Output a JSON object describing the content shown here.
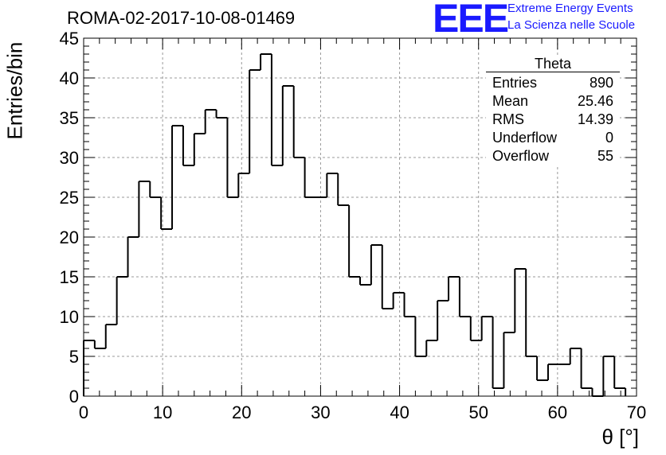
{
  "title": "ROMA-02-2017-10-08-01469",
  "logo": {
    "letters": "EEE",
    "line1": "Extreme Energy Events",
    "line2": "La Scienza nelle Scuole"
  },
  "stats_box": {
    "title": "Theta",
    "rows": [
      {
        "label": "Entries",
        "value": "890"
      },
      {
        "label": "Mean",
        "value": "25.46"
      },
      {
        "label": "RMS",
        "value": "14.39"
      },
      {
        "label": "Underflow",
        "value": "0"
      },
      {
        "label": "Overflow",
        "value": "55"
      }
    ]
  },
  "chart_data": {
    "type": "bar",
    "style": "step-histogram",
    "xlabel": "θ [°]",
    "ylabel": "Entries/bin",
    "xlim": [
      0,
      70
    ],
    "ylim": [
      0,
      45
    ],
    "bin_width": 1.4,
    "x_ticks": [
      0,
      10,
      20,
      30,
      40,
      50,
      60,
      70
    ],
    "y_ticks": [
      0,
      5,
      10,
      15,
      20,
      25,
      30,
      35,
      40,
      45
    ],
    "grid": true,
    "values": [
      7,
      6,
      9,
      15,
      20,
      27,
      25,
      21,
      34,
      29,
      33,
      36,
      35,
      25,
      28,
      41,
      43,
      29,
      39,
      30,
      25,
      25,
      28,
      24,
      15,
      14,
      19,
      11,
      13,
      10,
      5,
      7,
      12,
      15,
      10,
      7,
      10,
      1,
      8,
      16,
      5,
      2,
      4,
      4,
      6,
      1,
      0,
      5,
      1
    ]
  }
}
